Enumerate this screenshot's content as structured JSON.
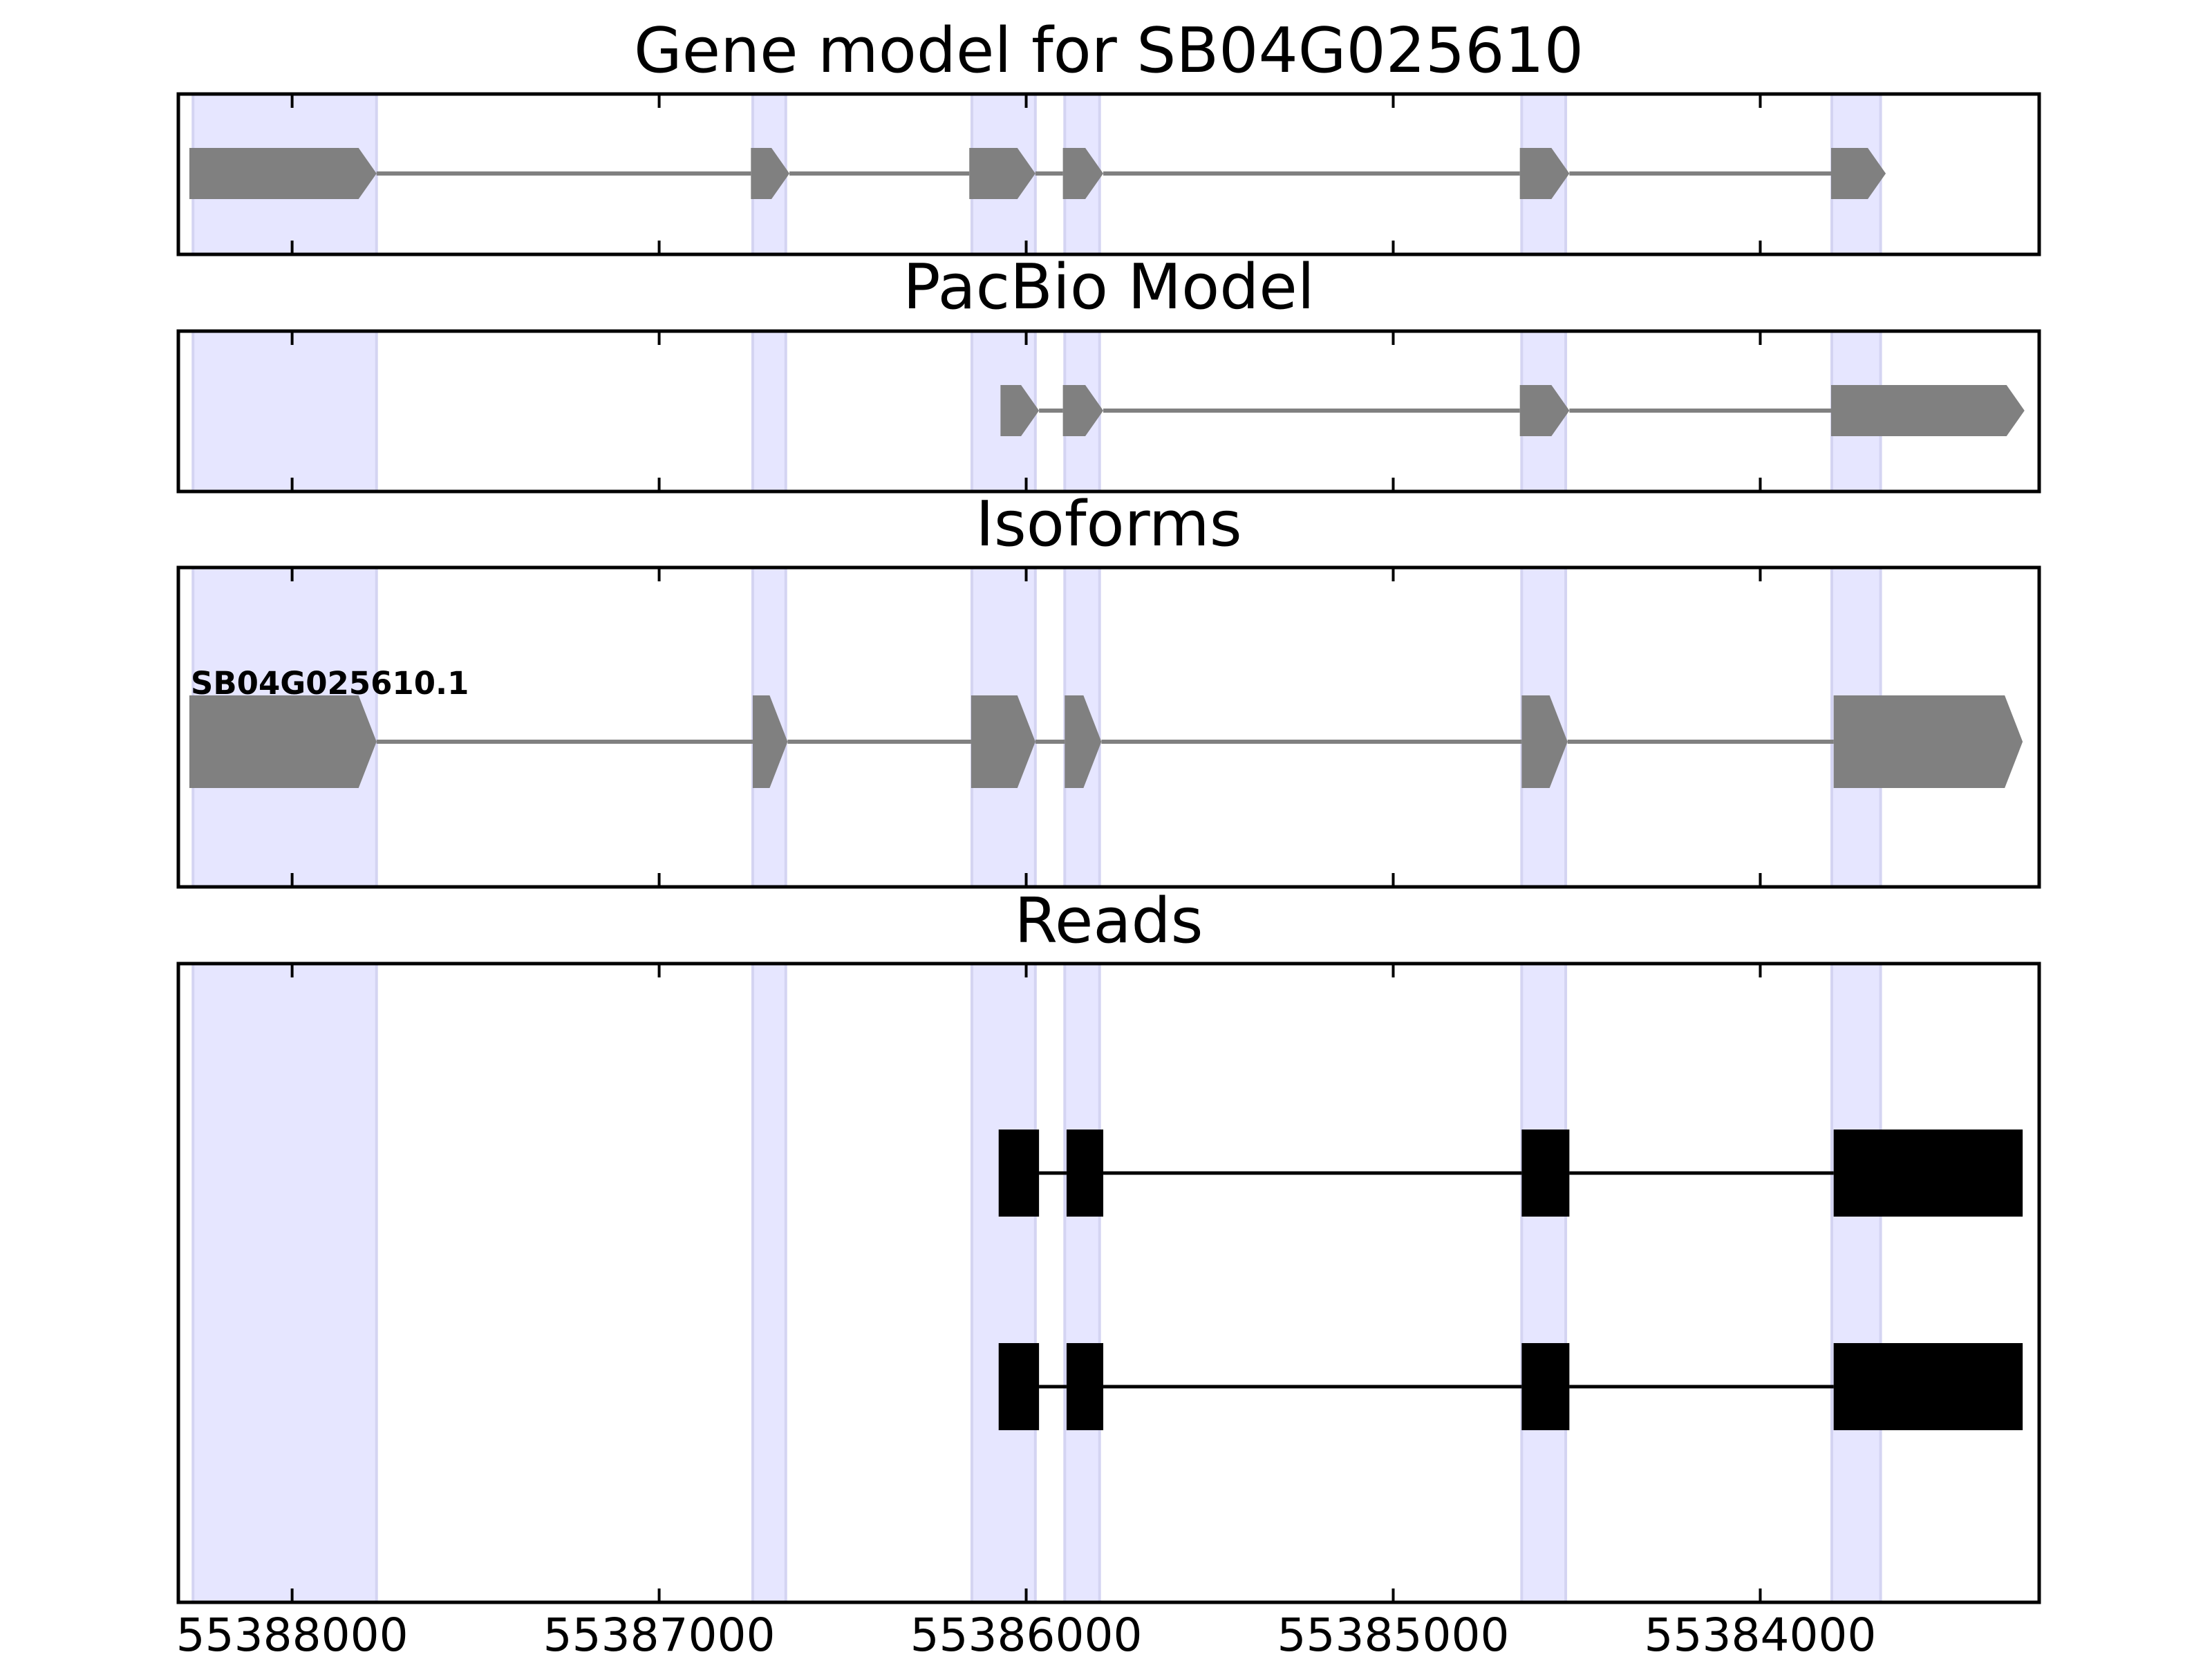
{
  "chart_data": {
    "type": "gene-model-tracks",
    "strand": "minus",
    "x_axis": {
      "xlim": [
        55388310,
        55383240
      ],
      "ticks": [
        55388000,
        55387000,
        55386000,
        55385000,
        55384000
      ],
      "tick_labels": [
        "55388000",
        "55387000",
        "55386000",
        "55385000",
        "55384000"
      ]
    },
    "exon_regions": [
      [
        55388270,
        55387770
      ],
      [
        55386745,
        55386655
      ],
      [
        55386148,
        55385975
      ],
      [
        55385895,
        55385800
      ],
      [
        55384650,
        55384530
      ],
      [
        55383805,
        55383672
      ]
    ],
    "panels": [
      {
        "title": "Gene model for SB04G025610",
        "style": "arrow",
        "color": "#808080",
        "features": [
          {
            "exons": [
              [
                55388280,
                55387770
              ],
              [
                55386750,
                55386645
              ],
              [
                55386155,
                55385975
              ],
              [
                55385900,
                55385790
              ],
              [
                55384655,
                55384520
              ],
              [
                55383807,
                55383658
              ]
            ]
          }
        ]
      },
      {
        "title": "PacBio Model",
        "style": "arrow",
        "color": "#808080",
        "features": [
          {
            "exons": [
              [
                55386070,
                55385965
              ],
              [
                55385900,
                55385790
              ],
              [
                55384655,
                55384520
              ],
              [
                55383807,
                55383280
              ]
            ]
          }
        ]
      },
      {
        "title": "Isoforms",
        "style": "arrow",
        "color": "#808080",
        "features": [
          {
            "label": "SB04G025610.1",
            "exons": [
              [
                55388280,
                55387770
              ],
              [
                55386745,
                55386650
              ],
              [
                55386150,
                55385975
              ],
              [
                55385895,
                55385795
              ],
              [
                55384650,
                55384525
              ],
              [
                55383800,
                55383285
              ]
            ]
          }
        ]
      },
      {
        "title": "Reads",
        "style": "box",
        "color": "#000000",
        "features": [
          {
            "exons": [
              [
                55386075,
                55385965
              ],
              [
                55385890,
                55385790
              ],
              [
                55384650,
                55384520
              ],
              [
                55383800,
                55383285
              ]
            ]
          },
          {
            "exons": [
              [
                55386075,
                55385965
              ],
              [
                55385890,
                55385790
              ],
              [
                55384650,
                55384520
              ],
              [
                55383800,
                55383285
              ]
            ]
          }
        ]
      }
    ],
    "colors": {
      "exon_highlight": "#e6e6ff",
      "exon_highlight_edge": "#d4d4f2",
      "model_fill": "#808080",
      "read_fill": "#000000"
    }
  }
}
